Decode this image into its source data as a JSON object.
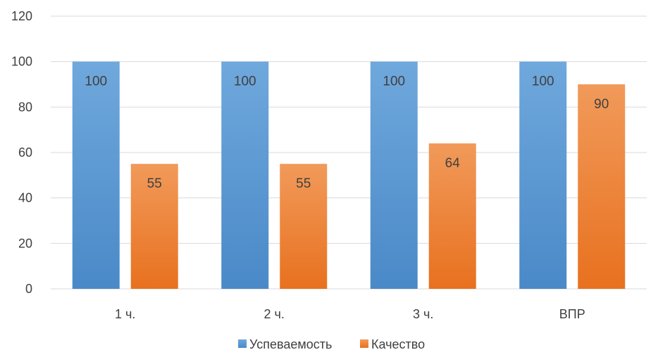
{
  "chart_data": {
    "type": "bar",
    "categories": [
      "1 ч.",
      "2 ч.",
      "3 ч.",
      "ВПР"
    ],
    "series": [
      {
        "name": "Успеваемость",
        "values": [
          100,
          100,
          100,
          100
        ],
        "color": "#5B9BD5"
      },
      {
        "name": "Качество",
        "values": [
          55,
          55,
          64,
          90
        ],
        "color": "#ED7D31"
      }
    ],
    "ylim": [
      0,
      120
    ],
    "yticks": [
      0,
      20,
      40,
      60,
      80,
      100,
      120
    ],
    "grid": true,
    "legend_position": "bottom",
    "data_labels": true
  }
}
